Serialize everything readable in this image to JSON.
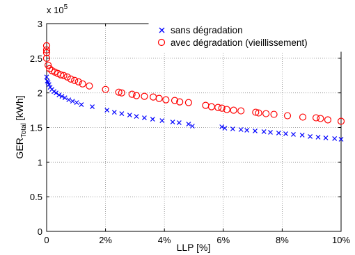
{
  "chart_data": {
    "type": "scatter",
    "title": "",
    "xlabel": "LLP [%]",
    "ylabel": "GER",
    "ylabel_sub": "Total",
    "ylabel_unit": " [kWh]",
    "y_exponent_label": "x 10",
    "y_exponent_power": "5",
    "xlim": [
      0,
      10
    ],
    "ylim": [
      0,
      3
    ],
    "x_ticks": [
      0,
      2,
      4,
      6,
      8,
      10
    ],
    "x_tick_labels": [
      "0",
      "2%",
      "4%",
      "6%",
      "8%",
      "10%"
    ],
    "y_ticks": [
      0,
      0.5,
      1,
      1.5,
      2,
      2.5,
      3
    ],
    "y_tick_labels": [
      "0",
      "0.5",
      "1",
      "1.5",
      "2",
      "2.5",
      "3"
    ],
    "grid": true,
    "legend_position": "top-right",
    "series": [
      {
        "name": "sans dégradation",
        "marker": "x",
        "color": "#0000ff",
        "x": [
          0.0,
          0.02,
          0.05,
          0.08,
          0.12,
          0.18,
          0.25,
          0.32,
          0.42,
          0.52,
          0.62,
          0.75,
          0.88,
          1.02,
          1.18,
          1.55,
          2.05,
          2.3,
          2.55,
          2.82,
          3.05,
          3.32,
          3.6,
          3.92,
          4.28,
          4.5,
          4.82,
          4.95,
          5.95,
          6.05,
          6.32,
          6.6,
          6.8,
          7.08,
          7.38,
          7.6,
          7.88,
          8.12,
          8.38,
          8.68,
          8.95,
          9.22,
          9.48,
          9.78,
          10.0
        ],
        "y": [
          2.23,
          2.17,
          2.15,
          2.12,
          2.08,
          2.05,
          2.02,
          2.0,
          1.97,
          1.95,
          1.93,
          1.9,
          1.88,
          1.86,
          1.83,
          1.8,
          1.75,
          1.72,
          1.7,
          1.68,
          1.66,
          1.64,
          1.62,
          1.6,
          1.58,
          1.57,
          1.55,
          1.52,
          1.51,
          1.49,
          1.48,
          1.47,
          1.46,
          1.45,
          1.44,
          1.43,
          1.42,
          1.41,
          1.4,
          1.39,
          1.37,
          1.36,
          1.35,
          1.34,
          1.33
        ]
      },
      {
        "name": "avec dégradation (vieillissement)",
        "marker": "o",
        "color": "#ff0000",
        "x": [
          0.0,
          0.0,
          0.0,
          0.0,
          0.05,
          0.1,
          0.18,
          0.28,
          0.38,
          0.48,
          0.58,
          0.7,
          0.82,
          0.95,
          1.08,
          1.22,
          1.45,
          2.0,
          2.45,
          2.55,
          2.9,
          3.05,
          3.32,
          3.62,
          3.82,
          4.05,
          4.35,
          4.52,
          4.82,
          5.4,
          5.6,
          5.82,
          5.95,
          6.12,
          6.35,
          6.6,
          7.1,
          7.2,
          7.45,
          7.72,
          8.18,
          8.7,
          9.15,
          9.3,
          9.55,
          10.0
        ],
        "y": [
          2.68,
          2.62,
          2.58,
          2.5,
          2.4,
          2.35,
          2.32,
          2.3,
          2.28,
          2.26,
          2.25,
          2.23,
          2.2,
          2.18,
          2.16,
          2.13,
          2.1,
          2.05,
          2.01,
          2.0,
          1.98,
          1.96,
          1.95,
          1.94,
          1.92,
          1.9,
          1.89,
          1.87,
          1.86,
          1.82,
          1.8,
          1.79,
          1.78,
          1.76,
          1.75,
          1.74,
          1.72,
          1.71,
          1.7,
          1.69,
          1.67,
          1.65,
          1.64,
          1.63,
          1.61,
          1.59
        ]
      }
    ]
  }
}
